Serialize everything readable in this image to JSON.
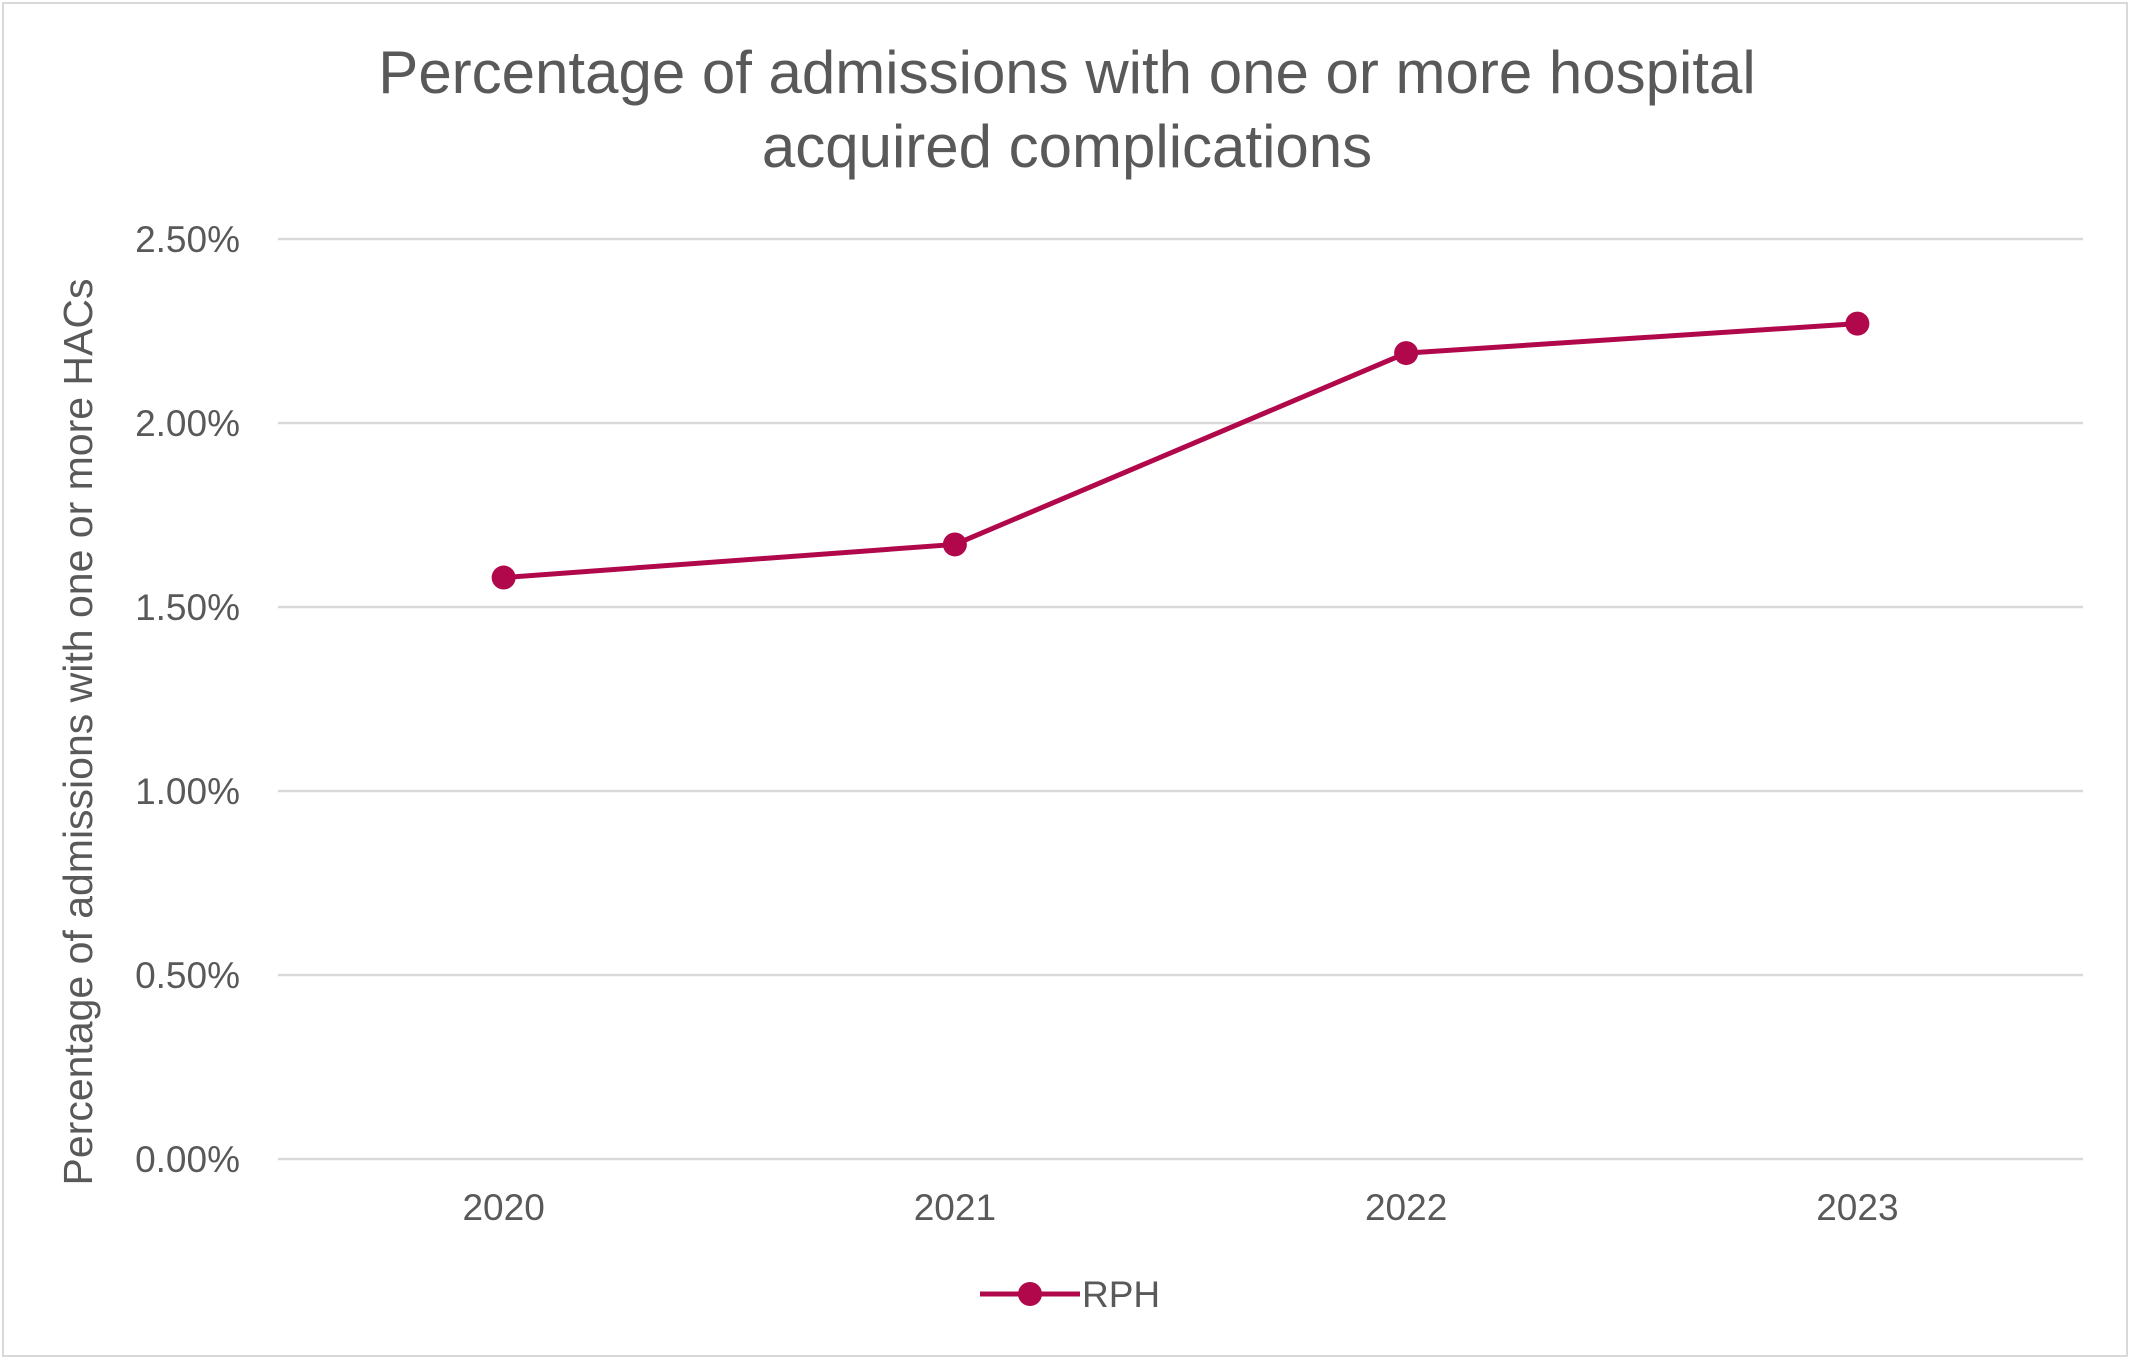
{
  "chart_data": {
    "type": "line",
    "title_lines": [
      "Percentage of admissions with one or more hospital",
      "acquired complications"
    ],
    "ylabel": "Percentage of admissions with one or more HACs",
    "xlabel": "",
    "categories": [
      "2020",
      "2021",
      "2022",
      "2023"
    ],
    "y_ticks": [
      "0.00%",
      "0.50%",
      "1.00%",
      "1.50%",
      "2.00%",
      "2.50%"
    ],
    "ylim": [
      0,
      0.025
    ],
    "series": [
      {
        "name": "RPH",
        "values": [
          0.0158,
          0.0167,
          0.0219,
          0.0227
        ],
        "color": "#b0084a"
      }
    ],
    "grid": true,
    "legend_position": "bottom"
  }
}
